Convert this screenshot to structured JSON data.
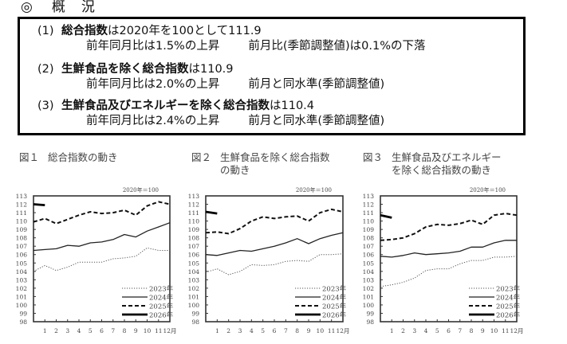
{
  "heading": {
    "mark": "◎",
    "word1": "概",
    "word2": "況"
  },
  "summary": [
    {
      "num": "(1)",
      "bold": "総合指数",
      "rest": "は2020年を100として111.9",
      "yoy": "前年同月比は1.5%の上昇",
      "mom": "前月比(季節調整値)は0.1%の下落"
    },
    {
      "num": "(2)",
      "bold": "生鮮食品を除く総合指数",
      "rest": "は110.9",
      "yoy": "前年同月比は2.0%の上昇",
      "mom": "前月と同水準(季節調整値)"
    },
    {
      "num": "(3)",
      "bold": "生鮮食品及びエネルギーを除く総合指数",
      "rest": "は110.4",
      "yoy": "前年同月比は2.4%の上昇",
      "mom": "前月と同水準(季節調整値)"
    }
  ],
  "figures": [
    {
      "no": "図１",
      "title_line1": "総合指数の動き",
      "title_line2": ""
    },
    {
      "no": "図２",
      "title_line1": "生鮮食品を除く総合指数",
      "title_line2": "の動き"
    },
    {
      "no": "図３",
      "title_line1": "生鮮食品及びエネルギー",
      "title_line2": "を除く総合指数の動き"
    }
  ],
  "chart_data": [
    {
      "type": "line",
      "title": "図１ 総合指数の動き",
      "annotation": "2020年＝100",
      "xlabel": "",
      "ylabel": "",
      "x_ticks": [
        "",
        "1",
        "2",
        "3",
        "4",
        "5",
        "6",
        "7",
        "8",
        "9",
        "10",
        "11",
        "12月"
      ],
      "ylim": [
        98,
        113
      ],
      "y_ticks": [
        98,
        99,
        100,
        101,
        102,
        103,
        104,
        105,
        106,
        107,
        108,
        109,
        110,
        111,
        112,
        113
      ],
      "grid": false,
      "legend_position": "lower-right",
      "series": [
        {
          "name": "2023年",
          "style": "dotted",
          "values": [
            104.0,
            104.7,
            104.1,
            104.5,
            105.1,
            105.1,
            105.1,
            105.5,
            105.6,
            105.8,
            106.8,
            106.5,
            106.5
          ]
        },
        {
          "name": "2024年",
          "style": "solid",
          "values": [
            106.5,
            106.6,
            106.7,
            107.1,
            107.0,
            107.4,
            107.5,
            107.8,
            108.4,
            108.1,
            108.8,
            109.3,
            109.8
          ]
        },
        {
          "name": "2025年",
          "style": "dashed",
          "values": [
            109.9,
            110.3,
            109.7,
            110.2,
            110.7,
            111.1,
            110.9,
            111.0,
            111.3,
            110.7,
            111.8,
            112.3,
            112.0
          ]
        },
        {
          "name": "2026年",
          "style": "thick",
          "values": [
            112.0,
            111.9
          ]
        }
      ]
    },
    {
      "type": "line",
      "title": "図２ 生鮮食品を除く総合指数の動き",
      "annotation": "2020年＝100",
      "xlabel": "",
      "ylabel": "",
      "x_ticks": [
        "",
        "1",
        "2",
        "3",
        "4",
        "5",
        "6",
        "7",
        "8",
        "9",
        "10",
        "11",
        "12月"
      ],
      "ylim": [
        98,
        113
      ],
      "y_ticks": [
        98,
        99,
        100,
        101,
        102,
        103,
        104,
        105,
        106,
        107,
        108,
        109,
        110,
        111,
        112,
        113
      ],
      "grid": false,
      "legend_position": "lower-right",
      "series": [
        {
          "name": "2023年",
          "style": "dotted",
          "values": [
            103.9,
            104.3,
            103.6,
            104.0,
            104.8,
            104.7,
            104.8,
            105.2,
            105.3,
            105.2,
            106.0,
            106.0,
            106.1
          ]
        },
        {
          "name": "2024年",
          "style": "solid",
          "values": [
            106.0,
            105.9,
            106.2,
            106.5,
            106.4,
            106.7,
            107.0,
            107.4,
            107.9,
            107.3,
            107.9,
            108.3,
            108.6
          ]
        },
        {
          "name": "2025年",
          "style": "dashed",
          "values": [
            108.6,
            108.7,
            108.5,
            109.1,
            110.0,
            110.5,
            110.3,
            110.5,
            110.6,
            110.0,
            111.0,
            111.4,
            111.1
          ]
        },
        {
          "name": "2026年",
          "style": "thick",
          "values": [
            111.1,
            110.9
          ]
        }
      ]
    },
    {
      "type": "line",
      "title": "図３ 生鮮食品及びエネルギーを除く総合指数の動き",
      "annotation": "2020年＝100",
      "xlabel": "",
      "ylabel": "",
      "x_ticks": [
        "",
        "1",
        "2",
        "3",
        "4",
        "5",
        "6",
        "7",
        "8",
        "9",
        "10",
        "11",
        "12月"
      ],
      "ylim": [
        98,
        113
      ],
      "y_ticks": [
        98,
        99,
        100,
        101,
        102,
        103,
        104,
        105,
        106,
        107,
        108,
        109,
        110,
        111,
        112,
        113
      ],
      "grid": false,
      "legend_position": "lower-right",
      "series": [
        {
          "name": "2023年",
          "style": "dotted",
          "values": [
            102.2,
            102.4,
            102.7,
            103.2,
            104.1,
            104.3,
            104.3,
            104.9,
            105.3,
            105.3,
            105.7,
            105.7,
            105.8
          ]
        },
        {
          "name": "2024年",
          "style": "solid",
          "values": [
            105.8,
            105.7,
            105.9,
            106.2,
            106.0,
            106.1,
            106.2,
            106.4,
            106.9,
            106.9,
            107.4,
            107.7,
            107.7
          ]
        },
        {
          "name": "2025年",
          "style": "dashed",
          "values": [
            107.7,
            107.8,
            108.0,
            108.5,
            109.3,
            109.6,
            109.5,
            109.7,
            110.1,
            109.6,
            110.7,
            110.9,
            110.7
          ]
        },
        {
          "name": "2026年",
          "style": "thick",
          "values": [
            110.7,
            110.4
          ]
        }
      ]
    }
  ]
}
